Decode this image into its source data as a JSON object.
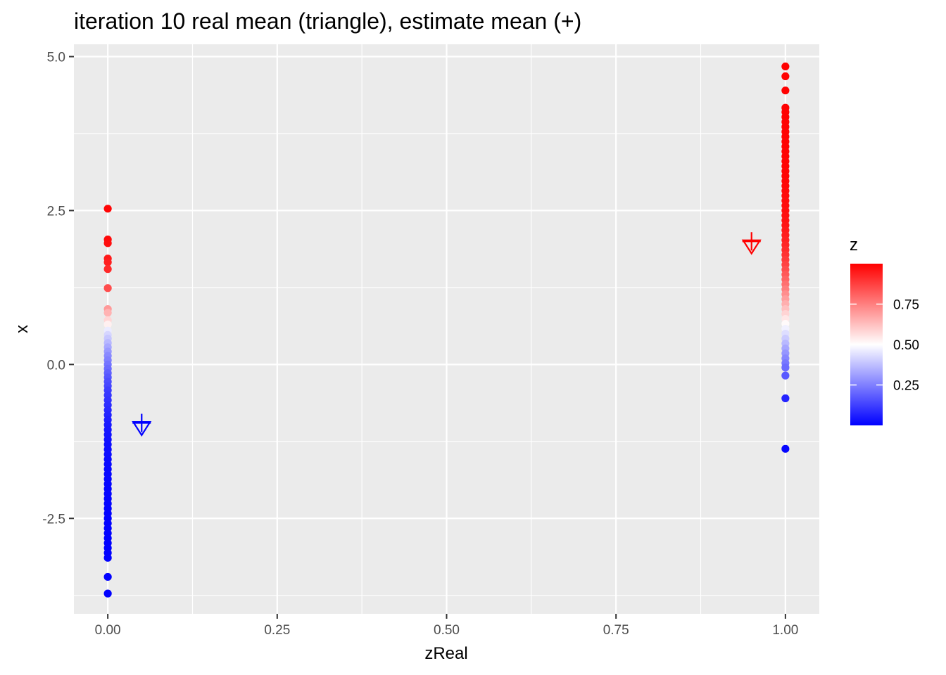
{
  "chart_data": {
    "type": "scatter",
    "title": "iteration 10 real mean (triangle), estimate mean (+)",
    "xlabel": "zReal",
    "ylabel": "x",
    "xlim": [
      -0.05,
      1.05
    ],
    "ylim": [
      -4.05,
      5.2
    ],
    "x_ticks": [
      0.0,
      0.25,
      0.5,
      0.75,
      1.0
    ],
    "x_tick_labels": [
      "0.00",
      "0.25",
      "0.50",
      "0.75",
      "1.00"
    ],
    "y_ticks": [
      5.0,
      2.5,
      0.0,
      -2.5
    ],
    "y_tick_labels": [
      "5.0",
      "2.5",
      "0.0",
      "-2.5"
    ],
    "grid": true,
    "colors": {
      "panel_bg": "#ebebeb",
      "grid": "#ffffff",
      "low": "#0000ff",
      "mid": "#ffffff",
      "high": "#ff0000"
    },
    "legend": {
      "title": "z",
      "position": "right",
      "type": "colorbar",
      "range": [
        0.0,
        1.0
      ],
      "breaks": [
        0.75,
        0.5,
        0.25
      ],
      "break_labels": [
        "0.75",
        "0.50",
        "0.25"
      ]
    },
    "series": [
      {
        "zReal": 0,
        "points": [
          {
            "x": 2.53,
            "z": 0.99
          },
          {
            "x": 2.03,
            "z": 0.98
          },
          {
            "x": 1.97,
            "z": 0.97
          },
          {
            "x": 1.72,
            "z": 0.95
          },
          {
            "x": 1.66,
            "z": 0.94
          },
          {
            "x": 1.55,
            "z": 0.92
          },
          {
            "x": 1.24,
            "z": 0.85
          },
          {
            "x": 0.9,
            "z": 0.7
          },
          {
            "x": 0.84,
            "z": 0.65
          },
          {
            "x": 0.72,
            "z": 0.58
          },
          {
            "x": 0.65,
            "z": 0.53
          },
          {
            "x": 0.55,
            "z": 0.46
          },
          {
            "x": 0.48,
            "z": 0.42
          },
          {
            "x": 0.42,
            "z": 0.39
          },
          {
            "x": 0.35,
            "z": 0.36
          },
          {
            "x": 0.28,
            "z": 0.33
          },
          {
            "x": 0.21,
            "z": 0.3
          },
          {
            "x": 0.14,
            "z": 0.27
          },
          {
            "x": 0.07,
            "z": 0.25
          },
          {
            "x": 0.0,
            "z": 0.23
          },
          {
            "x": -0.07,
            "z": 0.21
          },
          {
            "x": -0.14,
            "z": 0.19
          },
          {
            "x": -0.21,
            "z": 0.17
          },
          {
            "x": -0.28,
            "z": 0.15
          },
          {
            "x": -0.35,
            "z": 0.14
          },
          {
            "x": -0.42,
            "z": 0.12
          },
          {
            "x": -0.5,
            "z": 0.11
          },
          {
            "x": -0.58,
            "z": 0.1
          },
          {
            "x": -0.66,
            "z": 0.09
          },
          {
            "x": -0.74,
            "z": 0.08
          },
          {
            "x": -0.82,
            "z": 0.07
          },
          {
            "x": -0.9,
            "z": 0.06
          },
          {
            "x": -0.98,
            "z": 0.05
          },
          {
            "x": -1.06,
            "z": 0.045
          },
          {
            "x": -1.14,
            "z": 0.04
          },
          {
            "x": -1.22,
            "z": 0.035
          },
          {
            "x": -1.3,
            "z": 0.03
          },
          {
            "x": -1.38,
            "z": 0.028
          },
          {
            "x": -1.46,
            "z": 0.025
          },
          {
            "x": -1.54,
            "z": 0.022
          },
          {
            "x": -1.62,
            "z": 0.02
          },
          {
            "x": -1.7,
            "z": 0.018
          },
          {
            "x": -1.78,
            "z": 0.016
          },
          {
            "x": -1.86,
            "z": 0.015
          },
          {
            "x": -1.94,
            "z": 0.013
          },
          {
            "x": -2.02,
            "z": 0.012
          },
          {
            "x": -2.1,
            "z": 0.011
          },
          {
            "x": -2.18,
            "z": 0.01
          },
          {
            "x": -2.26,
            "z": 0.009
          },
          {
            "x": -2.34,
            "z": 0.008
          },
          {
            "x": -2.42,
            "z": 0.007
          },
          {
            "x": -2.5,
            "z": 0.007
          },
          {
            "x": -2.58,
            "z": 0.006
          },
          {
            "x": -2.66,
            "z": 0.005
          },
          {
            "x": -2.74,
            "z": 0.005
          },
          {
            "x": -2.82,
            "z": 0.004
          },
          {
            "x": -2.9,
            "z": 0.004
          },
          {
            "x": -2.98,
            "z": 0.003
          },
          {
            "x": -3.06,
            "z": 0.003
          },
          {
            "x": -3.14,
            "z": 0.003
          },
          {
            "x": -3.45,
            "z": 0.002
          },
          {
            "x": -3.72,
            "z": 0.001
          }
        ]
      },
      {
        "zReal": 1,
        "points": [
          {
            "x": 4.84,
            "z": 0.999
          },
          {
            "x": 4.68,
            "z": 0.999
          },
          {
            "x": 4.45,
            "z": 0.999
          },
          {
            "x": 4.17,
            "z": 0.998
          },
          {
            "x": 4.1,
            "z": 0.998
          },
          {
            "x": 4.02,
            "z": 0.998
          },
          {
            "x": 3.94,
            "z": 0.997
          },
          {
            "x": 3.86,
            "z": 0.997
          },
          {
            "x": 3.78,
            "z": 0.996
          },
          {
            "x": 3.7,
            "z": 0.996
          },
          {
            "x": 3.62,
            "z": 0.995
          },
          {
            "x": 3.54,
            "z": 0.994
          },
          {
            "x": 3.46,
            "z": 0.993
          },
          {
            "x": 3.38,
            "z": 0.992
          },
          {
            "x": 3.3,
            "z": 0.991
          },
          {
            "x": 3.22,
            "z": 0.99
          },
          {
            "x": 3.14,
            "z": 0.989
          },
          {
            "x": 3.06,
            "z": 0.988
          },
          {
            "x": 2.98,
            "z": 0.986
          },
          {
            "x": 2.9,
            "z": 0.984
          },
          {
            "x": 2.82,
            "z": 0.982
          },
          {
            "x": 2.74,
            "z": 0.98
          },
          {
            "x": 2.66,
            "z": 0.977
          },
          {
            "x": 2.58,
            "z": 0.974
          },
          {
            "x": 2.5,
            "z": 0.97
          },
          {
            "x": 2.42,
            "z": 0.966
          },
          {
            "x": 2.34,
            "z": 0.962
          },
          {
            "x": 2.26,
            "z": 0.957
          },
          {
            "x": 2.18,
            "z": 0.95
          },
          {
            "x": 2.1,
            "z": 0.943
          },
          {
            "x": 2.02,
            "z": 0.935
          },
          {
            "x": 1.94,
            "z": 0.925
          },
          {
            "x": 1.86,
            "z": 0.914
          },
          {
            "x": 1.78,
            "z": 0.9
          },
          {
            "x": 1.7,
            "z": 0.885
          },
          {
            "x": 1.62,
            "z": 0.868
          },
          {
            "x": 1.54,
            "z": 0.849
          },
          {
            "x": 1.46,
            "z": 0.828
          },
          {
            "x": 1.38,
            "z": 0.805
          },
          {
            "x": 1.3,
            "z": 0.78
          },
          {
            "x": 1.22,
            "z": 0.752
          },
          {
            "x": 1.14,
            "z": 0.722
          },
          {
            "x": 1.06,
            "z": 0.69
          },
          {
            "x": 0.98,
            "z": 0.657
          },
          {
            "x": 0.9,
            "z": 0.622
          },
          {
            "x": 0.82,
            "z": 0.585
          },
          {
            "x": 0.74,
            "z": 0.548
          },
          {
            "x": 0.66,
            "z": 0.51
          },
          {
            "x": 0.58,
            "z": 0.472
          },
          {
            "x": 0.5,
            "z": 0.435
          },
          {
            "x": 0.42,
            "z": 0.398
          },
          {
            "x": 0.34,
            "z": 0.362
          },
          {
            "x": 0.26,
            "z": 0.328
          },
          {
            "x": 0.18,
            "z": 0.295
          },
          {
            "x": 0.1,
            "z": 0.265
          },
          {
            "x": 0.02,
            "z": 0.236
          },
          {
            "x": -0.05,
            "z": 0.212
          },
          {
            "x": -0.18,
            "z": 0.175
          },
          {
            "x": -0.55,
            "z": 0.07
          },
          {
            "x": -1.37,
            "z": 0.01
          }
        ]
      }
    ],
    "means": [
      {
        "real": {
          "zReal": 0.05,
          "x": -1.0
        },
        "estimate": {
          "zReal": 0.05,
          "x": -0.95
        },
        "color": "#0000ff"
      },
      {
        "real": {
          "zReal": 0.95,
          "x": 1.95
        },
        "estimate": {
          "zReal": 0.95,
          "x": 2.0
        },
        "color": "#ff0000"
      }
    ]
  }
}
